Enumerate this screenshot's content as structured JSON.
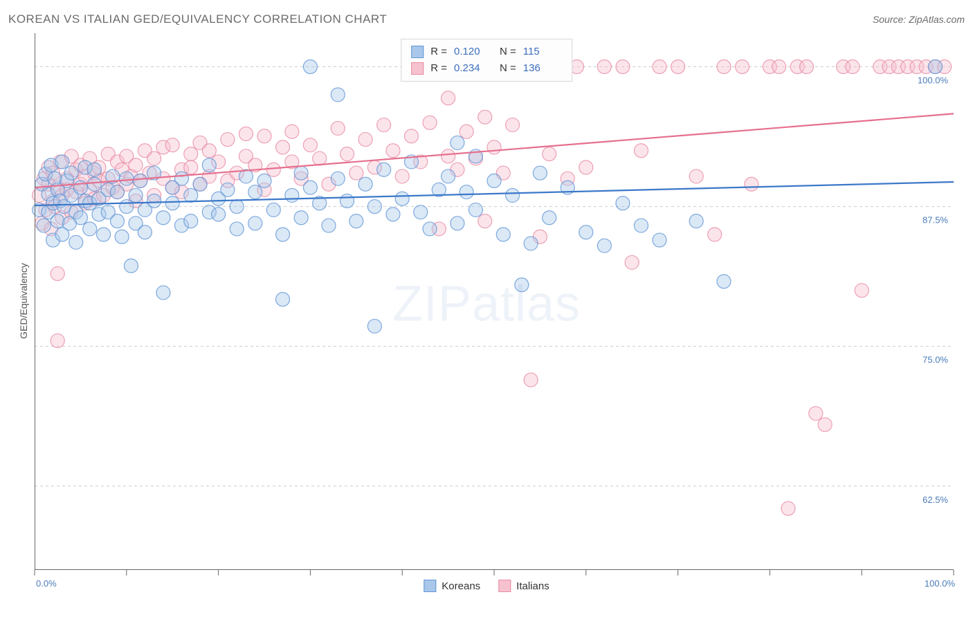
{
  "title": "KOREAN VS ITALIAN GED/EQUIVALENCY CORRELATION CHART",
  "source": "Source: ZipAtlas.com",
  "y_axis_label": "GED/Equivalency",
  "watermark": {
    "bold": "ZIP",
    "rest": "atlas"
  },
  "chart": {
    "type": "scatter",
    "x_domain": [
      0,
      100
    ],
    "y_domain": [
      55,
      103
    ],
    "x_ticks": {
      "minor_step": 10,
      "labels": [
        {
          "v": 0,
          "t": "0.0%"
        },
        {
          "v": 100,
          "t": "100.0%"
        }
      ]
    },
    "y_ticks": [
      {
        "v": 62.5,
        "t": "62.5%"
      },
      {
        "v": 75,
        "t": "75.0%"
      },
      {
        "v": 87.5,
        "t": "87.5%"
      },
      {
        "v": 100,
        "t": "100.0%"
      }
    ],
    "grid_color": "#cccccc",
    "axis_label_color": "#4a7bb9",
    "point_radius": 10,
    "point_opacity": 0.42,
    "line_width": 2.2,
    "series": [
      {
        "key": "koreans",
        "legend_label": "Koreans",
        "fill": "#a9c7ea",
        "stroke": "#5f95d6",
        "line_color": "#3b78c9",
        "R": "0.120",
        "N": "115",
        "trend": {
          "y_at_x0": 87.6,
          "y_at_x100": 89.7
        },
        "points": [
          [
            0.5,
            87.2
          ],
          [
            0.8,
            89.5
          ],
          [
            1.0,
            85.8
          ],
          [
            1.2,
            90.4
          ],
          [
            1.5,
            87.0
          ],
          [
            1.5,
            88.6
          ],
          [
            1.8,
            91.2
          ],
          [
            2.0,
            84.5
          ],
          [
            2.0,
            87.8
          ],
          [
            2.2,
            90.0
          ],
          [
            2.5,
            86.2
          ],
          [
            2.5,
            89.0
          ],
          [
            2.8,
            88.0
          ],
          [
            3.0,
            85.0
          ],
          [
            3.0,
            91.5
          ],
          [
            3.2,
            87.5
          ],
          [
            3.5,
            89.8
          ],
          [
            3.8,
            86.0
          ],
          [
            4.0,
            88.5
          ],
          [
            4.0,
            90.5
          ],
          [
            4.5,
            87.0
          ],
          [
            4.5,
            84.3
          ],
          [
            5.0,
            89.2
          ],
          [
            5.0,
            86.5
          ],
          [
            5.5,
            88.0
          ],
          [
            5.5,
            91.0
          ],
          [
            6.0,
            85.5
          ],
          [
            6.0,
            87.8
          ],
          [
            6.5,
            89.5
          ],
          [
            6.5,
            90.8
          ],
          [
            7.0,
            86.8
          ],
          [
            7.0,
            88.2
          ],
          [
            7.5,
            85.0
          ],
          [
            8.0,
            89.0
          ],
          [
            8.0,
            87.0
          ],
          [
            8.5,
            90.2
          ],
          [
            9.0,
            86.2
          ],
          [
            9.0,
            88.8
          ],
          [
            9.5,
            84.8
          ],
          [
            10.0,
            87.5
          ],
          [
            10.0,
            90.0
          ],
          [
            10.5,
            82.2
          ],
          [
            11.0,
            88.5
          ],
          [
            11.0,
            86.0
          ],
          [
            11.5,
            89.8
          ],
          [
            12.0,
            87.2
          ],
          [
            12.0,
            85.2
          ],
          [
            13.0,
            88.0
          ],
          [
            13.0,
            90.5
          ],
          [
            14.0,
            86.5
          ],
          [
            14.0,
            79.8
          ],
          [
            15.0,
            89.2
          ],
          [
            15.0,
            87.8
          ],
          [
            16.0,
            85.8
          ],
          [
            16.0,
            90.0
          ],
          [
            17.0,
            88.5
          ],
          [
            17.0,
            86.2
          ],
          [
            18.0,
            89.5
          ],
          [
            19.0,
            87.0
          ],
          [
            19.0,
            91.2
          ],
          [
            20.0,
            86.8
          ],
          [
            20.0,
            88.2
          ],
          [
            21.0,
            89.0
          ],
          [
            22.0,
            85.5
          ],
          [
            22.0,
            87.5
          ],
          [
            23.0,
            90.2
          ],
          [
            24.0,
            86.0
          ],
          [
            24.0,
            88.8
          ],
          [
            25.0,
            89.8
          ],
          [
            26.0,
            87.2
          ],
          [
            27.0,
            85.0
          ],
          [
            27.0,
            79.2
          ],
          [
            28.0,
            88.5
          ],
          [
            29.0,
            90.5
          ],
          [
            29.0,
            86.5
          ],
          [
            30.0,
            89.2
          ],
          [
            30.0,
            100.0
          ],
          [
            31.0,
            87.8
          ],
          [
            32.0,
            85.8
          ],
          [
            33.0,
            90.0
          ],
          [
            33.0,
            97.5
          ],
          [
            34.0,
            88.0
          ],
          [
            35.0,
            86.2
          ],
          [
            36.0,
            89.5
          ],
          [
            37.0,
            87.5
          ],
          [
            37.0,
            76.8
          ],
          [
            38.0,
            90.8
          ],
          [
            39.0,
            86.8
          ],
          [
            40.0,
            88.2
          ],
          [
            41.0,
            91.5
          ],
          [
            42.0,
            87.0
          ],
          [
            43.0,
            85.5
          ],
          [
            44.0,
            89.0
          ],
          [
            45.0,
            90.2
          ],
          [
            46.0,
            93.2
          ],
          [
            46.0,
            86.0
          ],
          [
            47.0,
            88.8
          ],
          [
            48.0,
            87.2
          ],
          [
            48.0,
            92.0
          ],
          [
            50.0,
            89.8
          ],
          [
            51.0,
            85.0
          ],
          [
            52.0,
            88.5
          ],
          [
            53.0,
            80.5
          ],
          [
            54.0,
            84.2
          ],
          [
            55.0,
            90.5
          ],
          [
            56.0,
            86.5
          ],
          [
            58.0,
            89.2
          ],
          [
            60.0,
            85.2
          ],
          [
            62.0,
            84.0
          ],
          [
            64.0,
            87.8
          ],
          [
            66.0,
            85.8
          ],
          [
            68.0,
            84.5
          ],
          [
            72.0,
            86.2
          ],
          [
            75.0,
            80.8
          ],
          [
            98.0,
            100.0
          ]
        ]
      },
      {
        "key": "italians",
        "legend_label": "Italians",
        "fill": "#f6c2cf",
        "stroke": "#e98aa2",
        "line_color": "#e66f8e",
        "R": "0.234",
        "N": "136",
        "trend": {
          "y_at_x0": 89.2,
          "y_at_x100": 95.8
        },
        "points": [
          [
            0.5,
            88.5
          ],
          [
            0.8,
            86.0
          ],
          [
            1.0,
            90.0
          ],
          [
            1.2,
            87.2
          ],
          [
            1.5,
            89.5
          ],
          [
            1.5,
            91.0
          ],
          [
            1.8,
            85.5
          ],
          [
            2.0,
            88.0
          ],
          [
            2.0,
            90.5
          ],
          [
            2.2,
            87.5
          ],
          [
            2.5,
            75.5
          ],
          [
            2.5,
            89.2
          ],
          [
            2.5,
            81.5
          ],
          [
            2.8,
            91.5
          ],
          [
            3.0,
            88.5
          ],
          [
            3.0,
            86.5
          ],
          [
            3.5,
            90.0
          ],
          [
            3.5,
            89.0
          ],
          [
            4.0,
            87.0
          ],
          [
            4.0,
            92.0
          ],
          [
            4.5,
            88.8
          ],
          [
            4.5,
            90.8
          ],
          [
            5.0,
            89.5
          ],
          [
            5.0,
            91.2
          ],
          [
            5.5,
            87.8
          ],
          [
            5.5,
            90.2
          ],
          [
            6.0,
            89.0
          ],
          [
            6.0,
            91.8
          ],
          [
            6.5,
            88.2
          ],
          [
            6.5,
            90.5
          ],
          [
            7.0,
            89.8
          ],
          [
            7.0,
            91.0
          ],
          [
            7.5,
            88.5
          ],
          [
            8.0,
            90.0
          ],
          [
            8.0,
            92.2
          ],
          [
            8.5,
            89.2
          ],
          [
            9.0,
            91.5
          ],
          [
            9.0,
            88.8
          ],
          [
            9.5,
            90.8
          ],
          [
            10.0,
            89.5
          ],
          [
            10.0,
            92.0
          ],
          [
            10.5,
            90.2
          ],
          [
            11.0,
            88.0
          ],
          [
            11.0,
            91.2
          ],
          [
            11.5,
            89.8
          ],
          [
            12.0,
            92.5
          ],
          [
            12.5,
            90.5
          ],
          [
            13.0,
            88.5
          ],
          [
            13.0,
            91.8
          ],
          [
            14.0,
            90.0
          ],
          [
            14.0,
            92.8
          ],
          [
            15.0,
            89.2
          ],
          [
            15.0,
            93.0
          ],
          [
            16.0,
            90.8
          ],
          [
            16.0,
            88.8
          ],
          [
            17.0,
            92.2
          ],
          [
            17.0,
            91.0
          ],
          [
            18.0,
            89.5
          ],
          [
            18.0,
            93.2
          ],
          [
            19.0,
            90.2
          ],
          [
            19.0,
            92.5
          ],
          [
            20.0,
            91.5
          ],
          [
            21.0,
            89.8
          ],
          [
            21.0,
            93.5
          ],
          [
            22.0,
            90.5
          ],
          [
            23.0,
            92.0
          ],
          [
            23.0,
            94.0
          ],
          [
            24.0,
            91.2
          ],
          [
            25.0,
            89.0
          ],
          [
            25.0,
            93.8
          ],
          [
            26.0,
            90.8
          ],
          [
            27.0,
            92.8
          ],
          [
            28.0,
            91.5
          ],
          [
            28.0,
            94.2
          ],
          [
            29.0,
            90.0
          ],
          [
            30.0,
            93.0
          ],
          [
            31.0,
            91.8
          ],
          [
            32.0,
            89.5
          ],
          [
            33.0,
            94.5
          ],
          [
            34.0,
            92.2
          ],
          [
            35.0,
            90.5
          ],
          [
            36.0,
            93.5
          ],
          [
            37.0,
            91.0
          ],
          [
            38.0,
            94.8
          ],
          [
            39.0,
            92.5
          ],
          [
            40.0,
            90.2
          ],
          [
            41.0,
            93.8
          ],
          [
            42.0,
            91.5
          ],
          [
            43.0,
            95.0
          ],
          [
            44.0,
            85.5
          ],
          [
            45.0,
            97.2
          ],
          [
            45.0,
            92.0
          ],
          [
            46.0,
            90.8
          ],
          [
            47.0,
            94.2
          ],
          [
            48.0,
            91.8
          ],
          [
            49.0,
            95.5
          ],
          [
            49.0,
            86.2
          ],
          [
            50.0,
            92.8
          ],
          [
            51.0,
            90.5
          ],
          [
            52.0,
            94.8
          ],
          [
            54.0,
            72.0
          ],
          [
            55.0,
            84.8
          ],
          [
            56.0,
            92.2
          ],
          [
            57.0,
            100.0
          ],
          [
            58.0,
            90.0
          ],
          [
            59.0,
            100.0
          ],
          [
            60.0,
            91.0
          ],
          [
            62.0,
            100.0
          ],
          [
            64.0,
            100.0
          ],
          [
            65.0,
            82.5
          ],
          [
            66.0,
            92.5
          ],
          [
            68.0,
            100.0
          ],
          [
            70.0,
            100.0
          ],
          [
            72.0,
            90.2
          ],
          [
            74.0,
            85.0
          ],
          [
            75.0,
            100.0
          ],
          [
            77.0,
            100.0
          ],
          [
            78.0,
            89.5
          ],
          [
            80.0,
            100.0
          ],
          [
            81.0,
            100.0
          ],
          [
            82.0,
            60.5
          ],
          [
            83.0,
            100.0
          ],
          [
            84.0,
            100.0
          ],
          [
            85.0,
            69.0
          ],
          [
            86.0,
            68.0
          ],
          [
            88.0,
            100.0
          ],
          [
            89.0,
            100.0
          ],
          [
            90.0,
            80.0
          ],
          [
            92.0,
            100.0
          ],
          [
            93.0,
            100.0
          ],
          [
            94.0,
            100.0
          ],
          [
            95.0,
            100.0
          ],
          [
            96.0,
            100.0
          ],
          [
            97.0,
            100.0
          ],
          [
            98.0,
            100.0
          ],
          [
            99.0,
            100.0
          ]
        ]
      }
    ]
  },
  "stats_box_labels": {
    "R": "R  =",
    "N": "N  ="
  }
}
